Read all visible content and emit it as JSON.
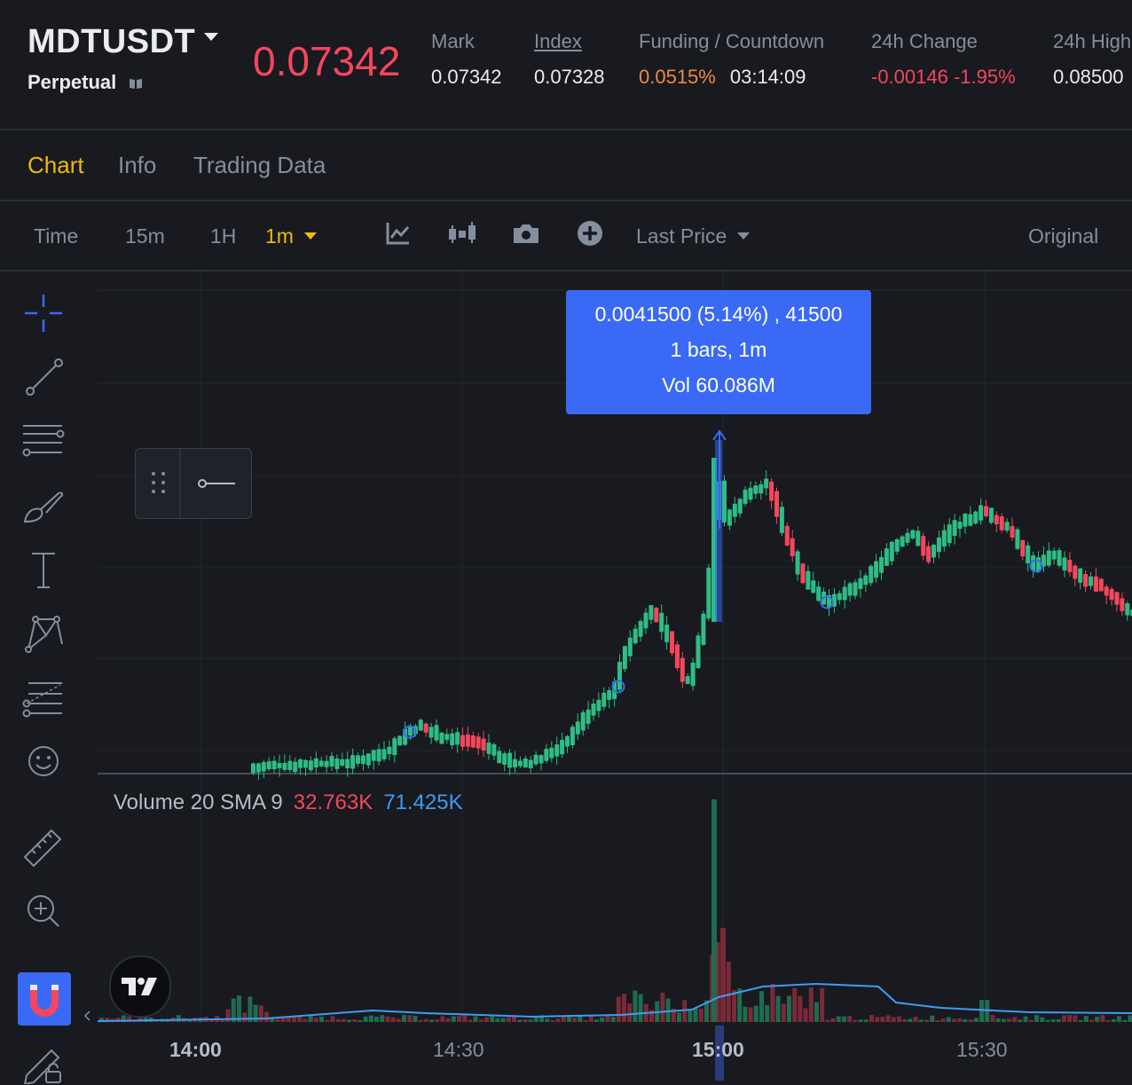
{
  "header": {
    "symbol": "MDTUSDT",
    "contract_type": "Perpetual",
    "last_price": "0.07342",
    "mark_label": "Mark",
    "mark_value": "0.07342",
    "index_label": "Index",
    "index_value": "0.07328",
    "funding_label": "Funding / Countdown",
    "funding_rate": "0.0515%",
    "countdown": "03:14:09",
    "change_label": "24h Change",
    "change_value": "-0.00146 -1.95%",
    "high_label": "24h High",
    "high_value": "0.08500"
  },
  "tabs": [
    "Chart",
    "Info",
    "Trading Data"
  ],
  "toolbar": {
    "time": "Time",
    "i15m": "15m",
    "i1h": "1H",
    "i1m": "1m",
    "price_type": "Last Price",
    "view": "Original"
  },
  "tooltip": {
    "line1": "0.0041500 (5.14%) , 41500",
    "line2": "1 bars, 1m",
    "line3": "Vol 60.086M"
  },
  "volume": {
    "label": "Volume 20 SMA 9",
    "value1": "32.763K",
    "value2": "71.425K"
  },
  "xaxis": [
    "14:00",
    "14:30",
    "15:00",
    "15:30"
  ],
  "colors": {
    "up": "#2ebd85",
    "down": "#f6465d",
    "accent": "#f0b90b",
    "blue": "#3a69f5"
  }
}
